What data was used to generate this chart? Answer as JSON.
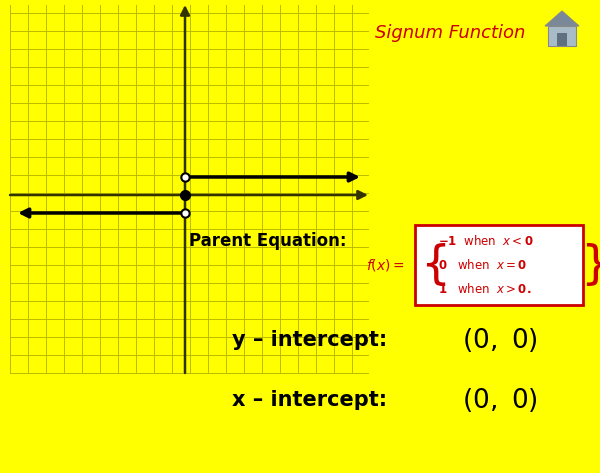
{
  "bg_color": "#FFFF00",
  "grid_color": "#BBBB00",
  "axis_color": "#333300",
  "line_color": "#000000",
  "title": "Signum Function",
  "title_color": "#CC0000",
  "parent_eq_label": "Parent Equation:",
  "y_intercept_label": "y – intercept:",
  "x_intercept_label": "x – intercept:",
  "intercept_value": "(0, 0)",
  "box_bg": "#FFFFFF",
  "box_border": "#CC0000",
  "fig_w": 6.0,
  "fig_h": 4.73,
  "dpi": 100
}
